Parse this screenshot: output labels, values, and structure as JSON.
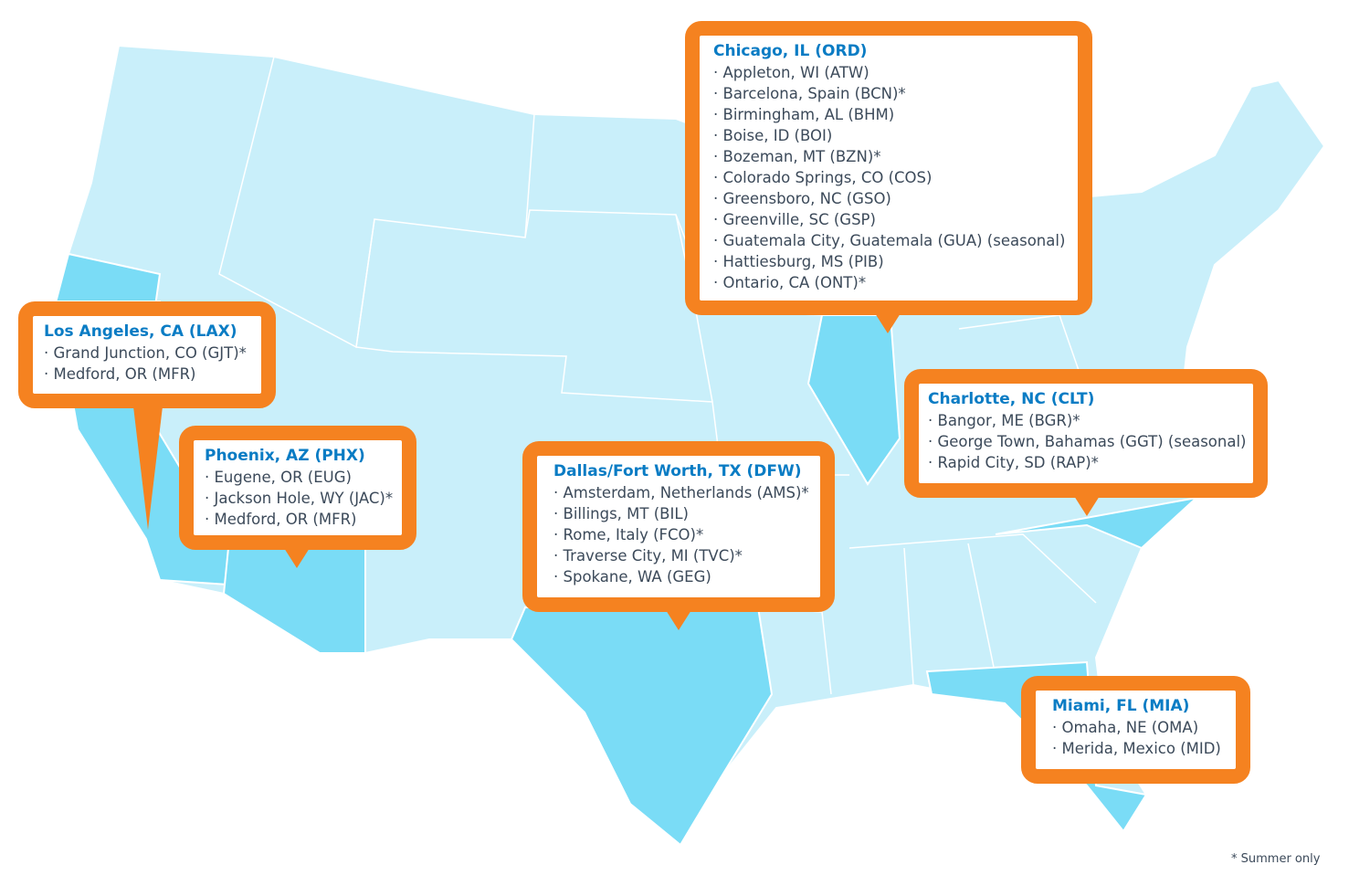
{
  "colors": {
    "accent": "#F58220",
    "title": "#0A7CC4",
    "map_base": "#C9EFFA",
    "map_highlight": "#7ADCF6",
    "text": "#3C4A5A"
  },
  "hubs": [
    {
      "title": "Los Angeles, CA (LAX)",
      "items": [
        "Grand Junction, CO (GJT)*",
        "Medford, OR (MFR)"
      ]
    },
    {
      "title": "Phoenix, AZ (PHX)",
      "items": [
        "Eugene, OR (EUG)",
        "Jackson Hole, WY (JAC)*",
        "Medford, OR (MFR)"
      ]
    },
    {
      "title": "Dallas/Fort Worth, TX (DFW)",
      "items": [
        "Amsterdam, Netherlands (AMS)*",
        "Billings, MT (BIL)",
        "Rome, Italy (FCO)*",
        "Traverse City, MI (TVC)*",
        "Spokane, WA (GEG)"
      ]
    },
    {
      "title": "Chicago, IL (ORD)",
      "items": [
        "Appleton, WI (ATW)",
        "Barcelona, Spain (BCN)*",
        "Birmingham, AL (BHM)",
        "Boise, ID (BOI)",
        "Bozeman, MT (BZN)*",
        "Colorado Springs, CO (COS)",
        "Greensboro, NC (GSO)",
        "Greenville, SC (GSP)",
        "Guatemala City, Guatemala (GUA) (seasonal)",
        "Hattiesburg, MS (PIB)",
        "Ontario, CA (ONT)*"
      ]
    },
    {
      "title": "Charlotte, NC (CLT)",
      "items": [
        "Bangor, ME (BGR)*",
        "George Town, Bahamas (GGT) (seasonal)",
        "Rapid City, SD (RAP)*"
      ]
    },
    {
      "title": "Miami, FL (MIA)",
      "items": [
        "Omaha, NE (OMA)",
        "Merida, Mexico (MID)"
      ]
    }
  ],
  "footnote": "* Summer only"
}
